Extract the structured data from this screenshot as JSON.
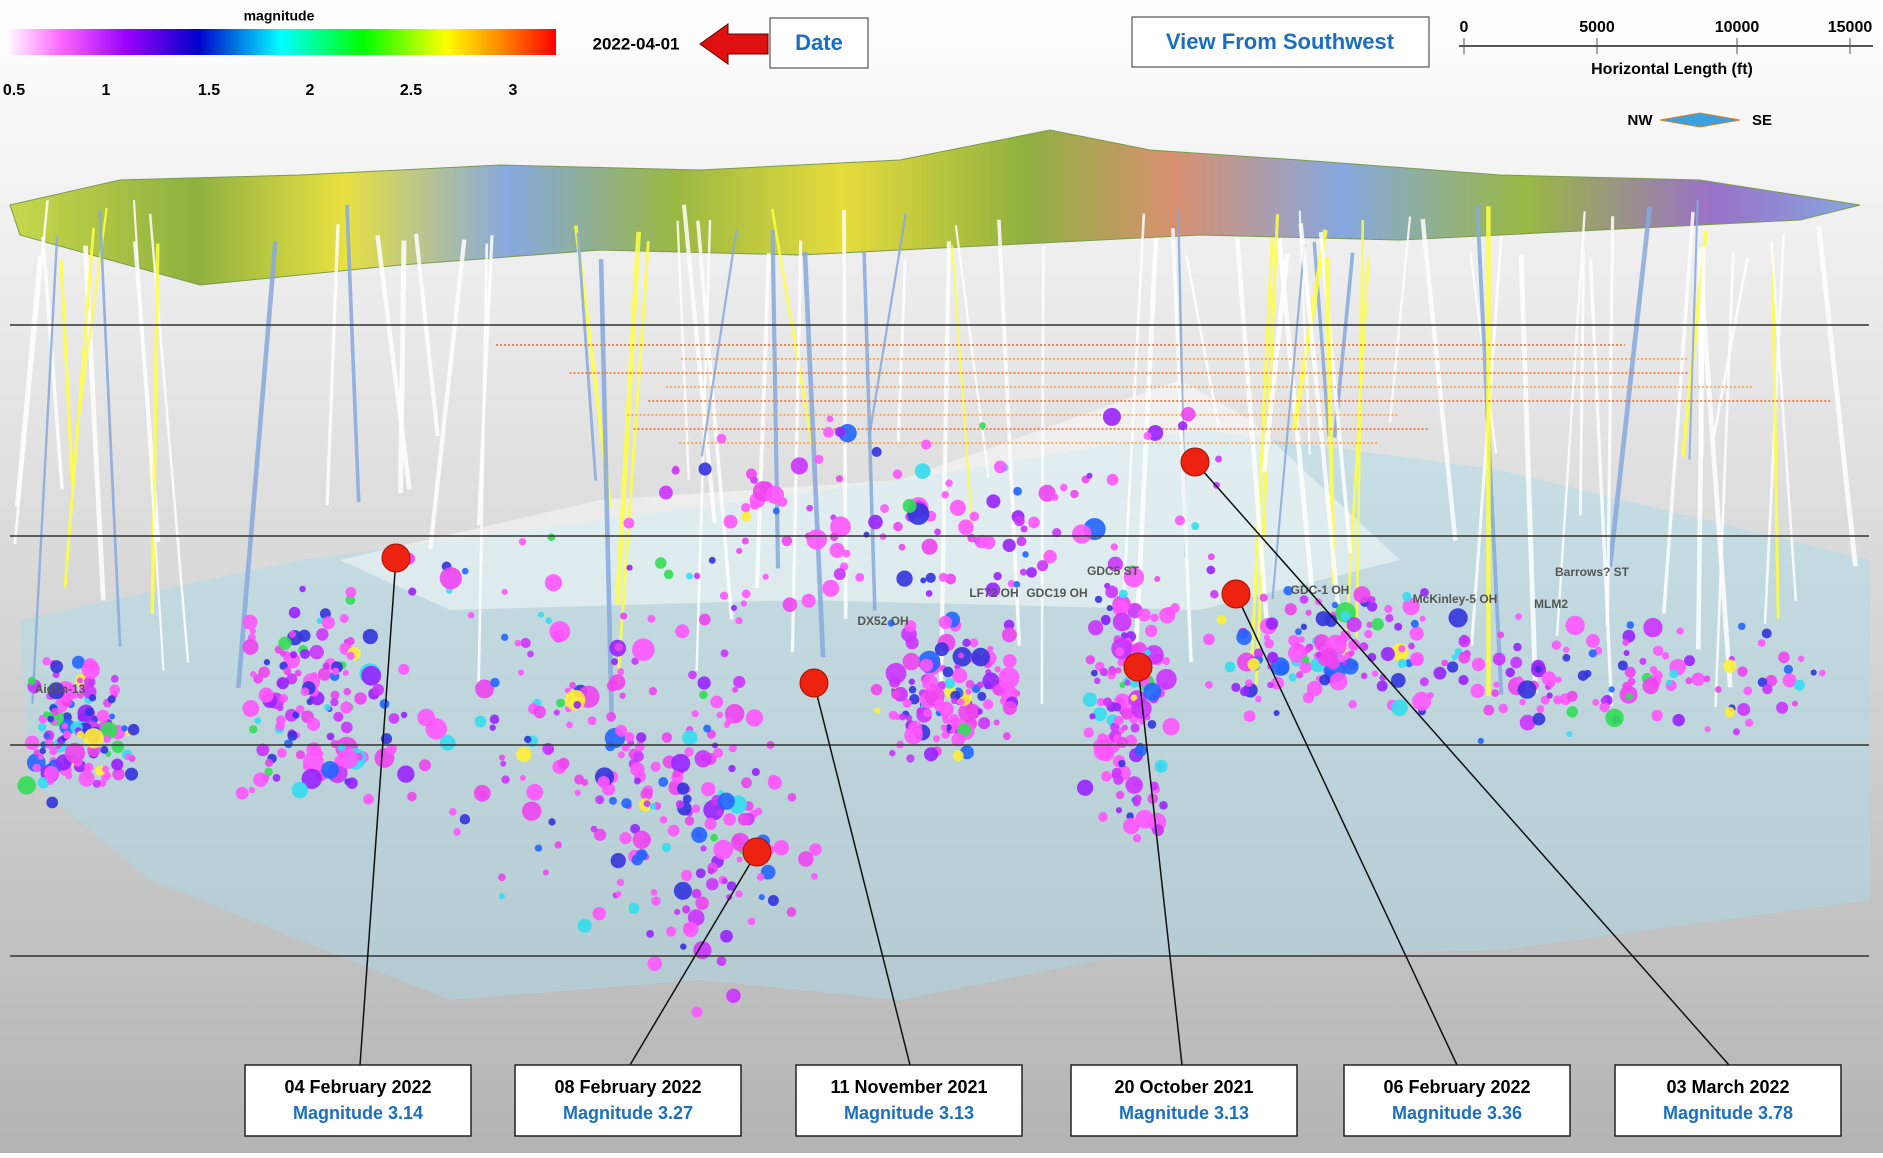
{
  "colorbar": {
    "title": "magnitude",
    "ticks": [
      "0.5",
      "1",
      "1.5",
      "2",
      "2.5",
      "3"
    ]
  },
  "date": "2022-04-01",
  "date_button": "Date",
  "view_button": "View From Southwest",
  "scale_bar": {
    "ticks": [
      "0",
      "5000",
      "10000",
      "15000"
    ],
    "label": "Horizontal Length (ft)"
  },
  "compass": {
    "left": "NW",
    "right": "SE"
  },
  "well_labels": [
    "Aidlin-13",
    "DX52 OH",
    "LF72 OH",
    "GDC19 OH",
    "GDC5 ST",
    "GDC-1 OH",
    "McKinley-5 OH",
    "MLM2",
    "Barrows? ST"
  ],
  "events": [
    {
      "date": "04 February 2022",
      "magnitude": "Magnitude 3.14"
    },
    {
      "date": "08 February 2022",
      "magnitude": "Magnitude 3.27"
    },
    {
      "date": "11 November 2021",
      "magnitude": "Magnitude 3.13"
    },
    {
      "date": "20 October 2021",
      "magnitude": "Magnitude 3.13"
    },
    {
      "date": "06 February 2022",
      "magnitude": "Magnitude 3.36"
    },
    {
      "date": "03 March 2022",
      "magnitude": "Magnitude 3.78"
    }
  ]
}
